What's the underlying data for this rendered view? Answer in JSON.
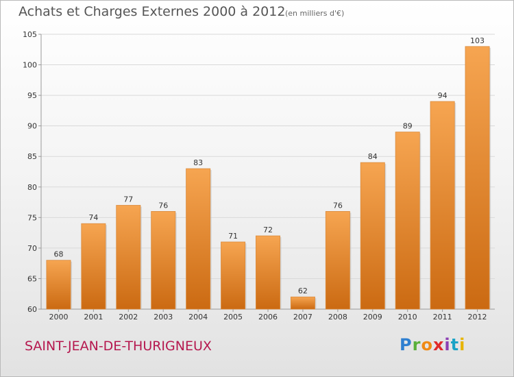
{
  "header": {
    "title": "Achats et Charges Externes 2000 à 2012",
    "subtitle": "(en milliers d'€)"
  },
  "footer": {
    "commune": "SAINT-JEAN-DE-THURIGNEUX",
    "logo_letters": [
      "P",
      "r",
      "o",
      "x",
      "i",
      "t",
      "i"
    ],
    "logo_colors": [
      "#2e7fd0",
      "#5ab03a",
      "#f08a14",
      "#e02a2a",
      "#8c3fb3",
      "#1aa3c6",
      "#e7b400"
    ]
  },
  "colors": {
    "bar_light": "#f6a551",
    "bar_dark": "#cb6a12",
    "grid": "#d9d9d9",
    "axis": "#999999"
  },
  "chart_data": {
    "type": "bar",
    "title": "Achats et Charges Externes 2000 à 2012",
    "subtitle": "(en milliers d'€)",
    "categories": [
      "2000",
      "2001",
      "2002",
      "2003",
      "2004",
      "2005",
      "2006",
      "2007",
      "2008",
      "2009",
      "2010",
      "2011",
      "2012"
    ],
    "values": [
      68,
      74,
      77,
      76,
      83,
      71,
      72,
      62,
      76,
      84,
      89,
      94,
      103
    ],
    "ylim": [
      60,
      105
    ],
    "yticks": [
      60,
      65,
      70,
      75,
      80,
      85,
      90,
      95,
      100,
      105
    ],
    "grid": true,
    "legend": "none"
  }
}
